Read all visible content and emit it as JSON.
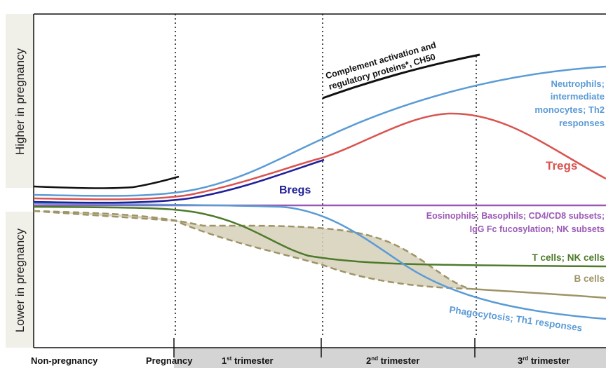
{
  "axis_labels": {
    "higher": "Higher in pregnancy",
    "lower": "Lower in pregnancy"
  },
  "timeline": {
    "non_pregnancy": "Non-pregnancy",
    "pregnancy": "Pregnancy",
    "t1_num": "1",
    "t1_sup": "st",
    "t1_word": " trimester",
    "t2_num": "2",
    "t2_sup": "nd",
    "t2_word": " trimester",
    "t3_num": "3",
    "t3_sup": "rd",
    "t3_word": " trimester"
  },
  "labels": {
    "complement_1": "Complement activation and",
    "complement_2": "regulatory proteins*, CH50",
    "neutrophils_1": "Neutrophils;",
    "neutrophils_2": "intermediate",
    "neutrophils_3": "monocytes; Th2",
    "neutrophils_4": "responses",
    "tregs": "Tregs",
    "bregs": "Bregs",
    "eosinophils_1": "Eosinophils; Basophils; CD4/CD8 subsets;",
    "eosinophils_2": "IgG Fc fucosylation; NK subsets",
    "tcells": "T cells; NK cells",
    "bcells": "B cells",
    "phagocytosis": "Phagocytosis; Th1 responses"
  },
  "colors": {
    "black": "#111111",
    "blue": "#5b9bd5",
    "red": "#d9534f",
    "navy": "#1f1f9a",
    "purple": "#9b59b6",
    "green": "#4e7a2b",
    "khaki": "#9e9467",
    "fill": "#d6d0b8"
  }
}
